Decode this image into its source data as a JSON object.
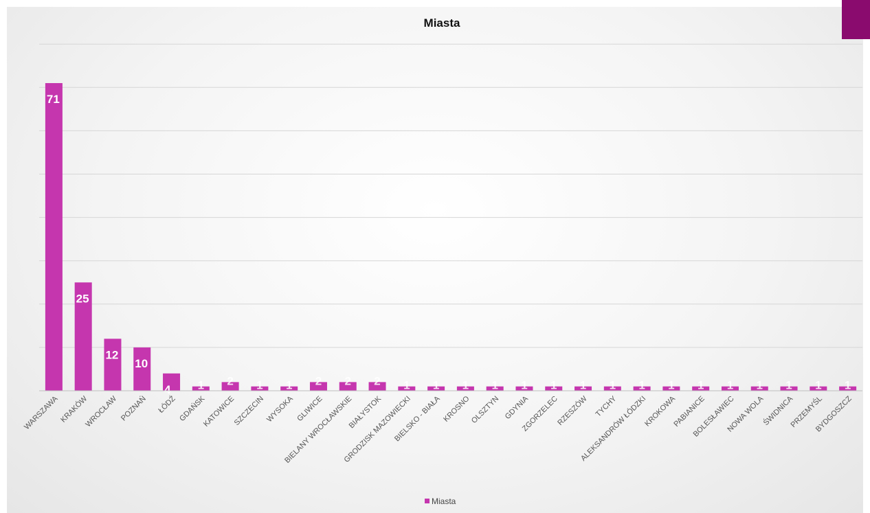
{
  "accent_color": "#8a0b6e",
  "bar_color": "#c536ae",
  "chart_data": {
    "type": "bar",
    "title": "Miasta",
    "categories": [
      "WARSZAWA",
      "KRAKÓW",
      "WROCŁAW",
      "POZNAŃ",
      "ŁÓDŹ",
      "GDAŃSK",
      "KATOWICE",
      "SZCZECIN",
      "WYSOKA",
      "GLIWICE",
      "BIELANY WROCŁAWSKIE",
      "BIAŁYSTOK",
      "GRODZISK MAZOWIECKI",
      "BIELSKO - BIAŁA",
      "KROSNO",
      "OLSZTYN",
      "GDYNIA",
      "ZGORZELEC",
      "RZESZÓW",
      "TYCHY",
      "ALEKSANDRÓW ŁÓDZKI",
      "KROKOWA",
      "PABIANICE",
      "BOLESŁAWIEC",
      "NOWA WOLA",
      "ŚWIDNICA",
      "PRZEMYŚL",
      "BYDGOSZCZ"
    ],
    "series": [
      {
        "name": "Miasta",
        "values": [
          71,
          25,
          12,
          10,
          4,
          1,
          2,
          1,
          1,
          2,
          2,
          2,
          1,
          1,
          1,
          1,
          1,
          1,
          1,
          1,
          1,
          1,
          1,
          1,
          1,
          1,
          1,
          1
        ]
      }
    ],
    "data_labels": [
      "71",
      "25",
      "12",
      "10",
      "4",
      "1",
      "2",
      "1",
      "1",
      "2",
      "2",
      "2",
      "1",
      "1",
      "1",
      "1",
      "1",
      "1",
      "1",
      "1",
      "1",
      "1",
      "1",
      "1",
      "1",
      "1",
      "1",
      "1"
    ],
    "ylim": [
      0,
      80
    ],
    "grid": true,
    "legend": "bottom"
  }
}
